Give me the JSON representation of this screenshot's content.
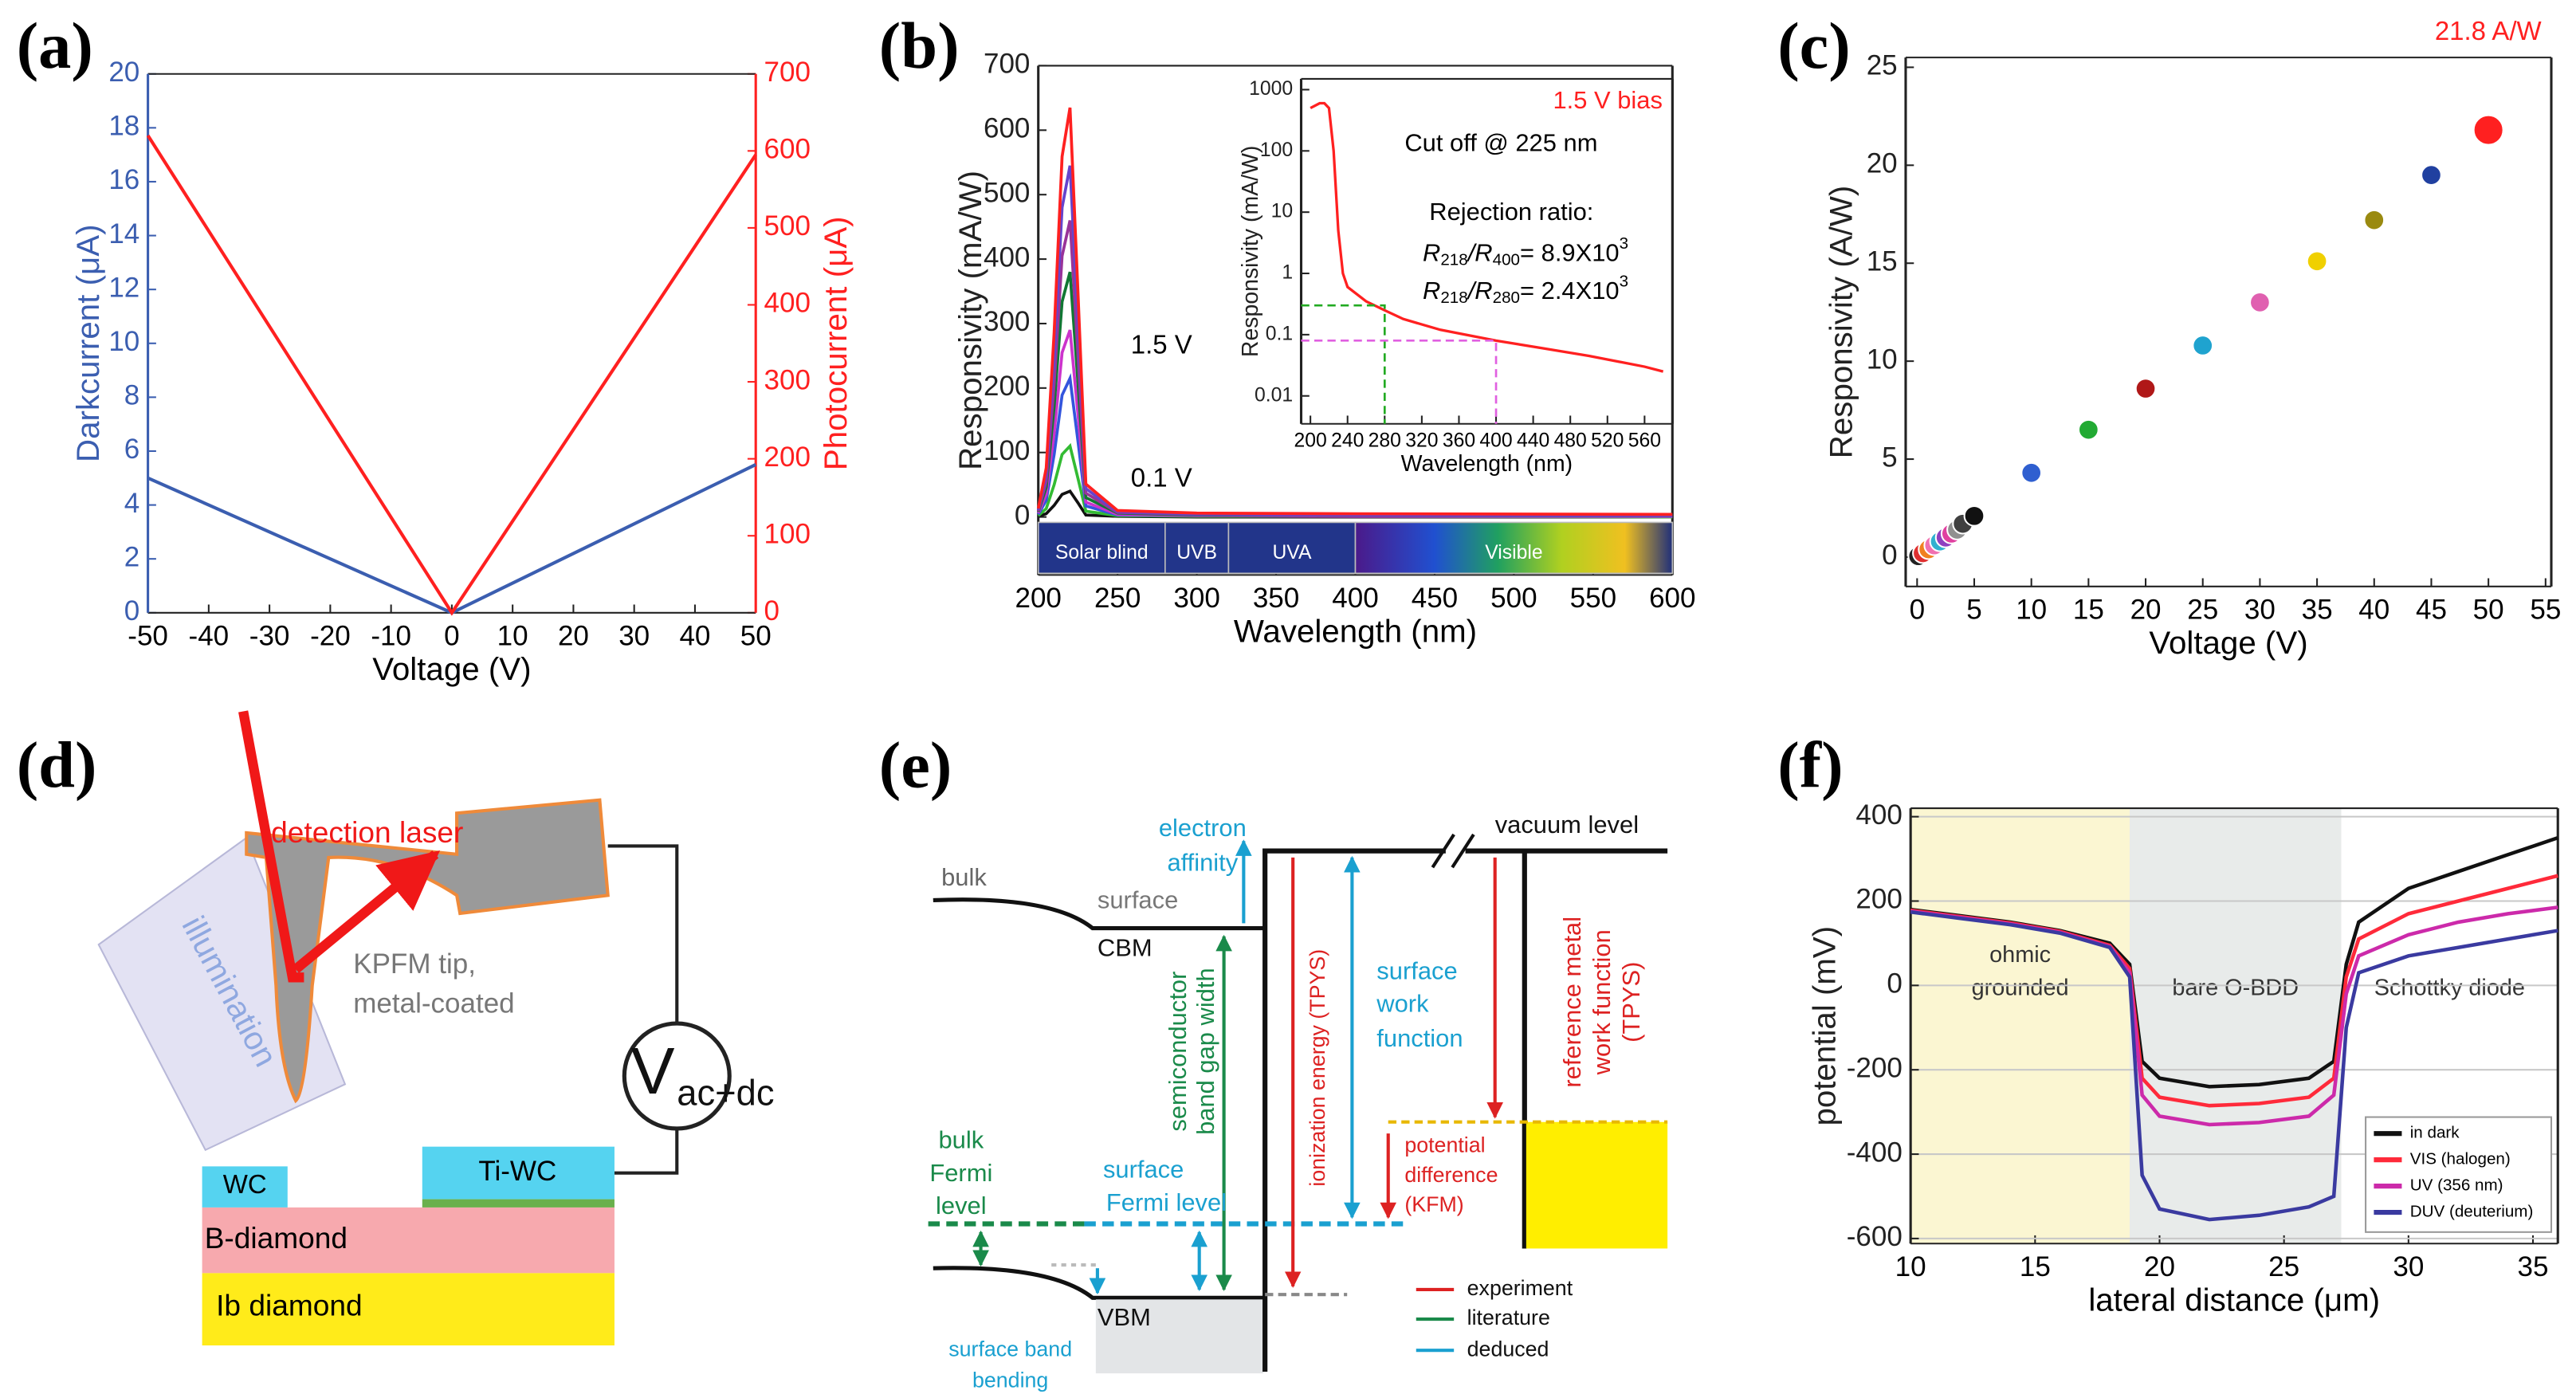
{
  "chart_data": [
    {
      "panel_label": "(a)",
      "type": "line",
      "xlabel": "Voltage (V)",
      "ylabel": "Darkcurrent (μA)",
      "y2label": "Photocurrent (μA)",
      "x": [
        -50,
        0,
        50
      ],
      "xlim": [
        -50,
        50
      ],
      "xticks": [
        -50,
        -40,
        -30,
        -20,
        -10,
        0,
        10,
        20,
        30,
        40,
        50
      ],
      "ylim": [
        0,
        20
      ],
      "yticks": [
        0,
        2,
        4,
        6,
        8,
        10,
        12,
        14,
        16,
        18,
        20
      ],
      "y2lim": [
        0,
        700
      ],
      "y2ticks": [
        0,
        100,
        200,
        300,
        400,
        500,
        600,
        700
      ],
      "series": [
        {
          "color": "#3b5eb0",
          "values": [
            5,
            0,
            5.5
          ]
        },
        {
          "color": "#ff2020",
          "axis": "y2",
          "values": [
            620,
            0,
            595
          ]
        }
      ]
    },
    {
      "panel_label": "(b)",
      "type": "line",
      "xlabel": "Wavelength (nm)",
      "ylabel": "Responsivity (mA/W)",
      "x": [
        200,
        205,
        210,
        215,
        220,
        225,
        230,
        250,
        300,
        400,
        600
      ],
      "xlim": [
        200,
        600
      ],
      "xticks": [
        200,
        250,
        300,
        350,
        400,
        450,
        500,
        550,
        600
      ],
      "ylim": [
        -90,
        700
      ],
      "yticks": [
        0,
        100,
        200,
        300,
        400,
        500,
        600,
        700
      ],
      "series": [
        {
          "color": "#111111",
          "values": [
            1,
            5,
            18,
            35,
            40,
            22,
            3,
            1,
            0,
            0,
            0
          ]
        },
        {
          "color": "#33bb33",
          "values": [
            2,
            13,
            50,
            97,
            110,
            60,
            9,
            2,
            1,
            1,
            0
          ]
        },
        {
          "color": "#3355dd",
          "values": [
            4,
            26,
            97,
            189,
            215,
            118,
            17,
            3,
            2,
            1,
            1
          ]
        },
        {
          "color": "#cc33cc",
          "values": [
            6,
            35,
            130,
            255,
            290,
            160,
            23,
            4,
            2,
            1,
            1
          ]
        },
        {
          "color": "#117733",
          "values": [
            8,
            46,
            171,
            334,
            380,
            209,
            30,
            6,
            3,
            2,
            2
          ]
        },
        {
          "color": "#993399",
          "values": [
            9,
            55,
            207,
            405,
            460,
            253,
            37,
            7,
            4,
            2,
            2
          ]
        },
        {
          "color": "#6644cc",
          "values": [
            11,
            65,
            245,
            480,
            545,
            300,
            44,
            8,
            4,
            3,
            2
          ]
        },
        {
          "color": "#ff2020",
          "values": [
            13,
            76,
            286,
            559,
            635,
            349,
            51,
            10,
            6,
            5,
            4
          ]
        }
      ],
      "annotations": [
        "1.5 V",
        "0.1 V"
      ],
      "bands": [
        {
          "label": "Solar blind",
          "from": 200,
          "to": 280
        },
        {
          "label": "UVB",
          "from": 280,
          "to": 320
        },
        {
          "label": "UVA",
          "from": 320,
          "to": 400
        },
        {
          "label": "Visible",
          "from": 400,
          "to": 600
        }
      ],
      "inset": {
        "type": "line",
        "ylog": true,
        "xlabel": "Wavelength (nm)",
        "ylabel": "Responsivity (mA/W)",
        "x": [
          200,
          210,
          215,
          220,
          225,
          230,
          235,
          240,
          260,
          280,
          300,
          340,
          400,
          450,
          500,
          560,
          580
        ],
        "xlim": [
          190,
          590
        ],
        "xticks": [
          200,
          240,
          280,
          320,
          360,
          400,
          440,
          480,
          520,
          560
        ],
        "ylim": [
          0.0035,
          1500
        ],
        "yticks": [
          0.01,
          0.1,
          1,
          10,
          100,
          1000
        ],
        "series": [
          {
            "color": "#ff2020",
            "values": [
              500,
              600,
              600,
              500,
              100,
              5,
              1,
              0.6,
              0.35,
              0.25,
              0.18,
              0.12,
              0.08,
              0.06,
              0.045,
              0.03,
              0.025
            ]
          }
        ],
        "reference_lines": [
          {
            "x": 280,
            "y": 0.3,
            "color": "#22aa22"
          },
          {
            "x": 400,
            "y": 0.08,
            "color": "#e060e0"
          }
        ],
        "bias": "1.5 V bias",
        "cutoff": "Cut off @ 225 nm",
        "rejection_title": "Rejection ratio:",
        "rejection": [
          [
            "R",
            "218",
            "/R",
            "400",
            "= 8.9X10",
            "3"
          ],
          [
            "R",
            "218",
            "/R",
            "280",
            "= 2.4X10",
            "3"
          ]
        ]
      }
    },
    {
      "panel_label": "(c)",
      "type": "scatter",
      "xlabel": "Voltage (V)",
      "ylabel": "Responsivity (A/W)",
      "x": [
        0.1,
        0.5,
        1,
        1.5,
        2,
        2.5,
        3,
        3.5,
        4,
        5,
        10,
        15,
        20,
        25,
        30,
        35,
        40,
        45,
        50
      ],
      "values": [
        0.05,
        0.2,
        0.4,
        0.6,
        0.8,
        1.0,
        1.2,
        1.4,
        1.7,
        2.1,
        4.3,
        6.5,
        8.6,
        10.8,
        13.0,
        15.1,
        17.2,
        19.5,
        21.8
      ],
      "colors": [
        "#222222",
        "#e03030",
        "#f08020",
        "#f070b0",
        "#30b0d0",
        "#9040c0",
        "#e040a0",
        "#909090",
        "#404040",
        "#111111",
        "#2f5fd0",
        "#22aa33",
        "#b01818",
        "#1fa3cf",
        "#e060b0",
        "#f0d000",
        "#9a8a10",
        "#2040a0",
        "#ff2020"
      ],
      "xlim": [
        -1,
        55.5
      ],
      "xticks": [
        0,
        5,
        10,
        15,
        20,
        25,
        30,
        35,
        40,
        45,
        50,
        55
      ],
      "ylim": [
        -1.5,
        25.5
      ],
      "yticks": [
        0,
        5,
        10,
        15,
        20,
        25
      ],
      "annotation": "21.8 A/W"
    },
    {
      "panel_label": "(f)",
      "type": "line",
      "xlabel": "lateral distance (μm)",
      "ylabel": "potential (mV)",
      "x": [
        10,
        12,
        14,
        16,
        18,
        18.8,
        19.3,
        20,
        22,
        24,
        26,
        27,
        27.5,
        28,
        30,
        32,
        34,
        36
      ],
      "xlim": [
        10,
        36
      ],
      "xticks": [
        10,
        15,
        20,
        25,
        30,
        35
      ],
      "ylim": [
        -612,
        420
      ],
      "yticks": [
        -600,
        -400,
        -200,
        0,
        200,
        400
      ],
      "grid": true,
      "legend": "lower right",
      "regions": [
        {
          "label": [
            "ohmic",
            "grounded"
          ],
          "from": 10,
          "to": 18.8,
          "color": "#fbf6d2"
        },
        {
          "label": [
            "bare O-BDD"
          ],
          "from": 18.8,
          "to": 27.3,
          "color": "#e8ebea"
        },
        {
          "label": [
            "Schottky diode"
          ],
          "from": 27.3,
          "to": 36,
          "color": "#ffffff"
        }
      ],
      "series": [
        {
          "name": "in dark",
          "color": "#111111",
          "values": [
            180,
            165,
            150,
            130,
            100,
            50,
            -180,
            -220,
            -240,
            -235,
            -220,
            -180,
            50,
            150,
            230,
            270,
            310,
            350
          ]
        },
        {
          "name": "VIS (halogen)",
          "color": "#ff2a3a",
          "values": [
            178,
            163,
            148,
            128,
            95,
            40,
            -220,
            -265,
            -285,
            -280,
            -265,
            -220,
            20,
            110,
            170,
            200,
            230,
            260
          ]
        },
        {
          "name": "UV (356 nm)",
          "color": "#cc2aaa",
          "values": [
            176,
            161,
            146,
            126,
            92,
            30,
            -260,
            -310,
            -330,
            -325,
            -310,
            -260,
            -20,
            70,
            120,
            150,
            170,
            185
          ]
        },
        {
          "name": "DUV (deuterium)",
          "color": "#3a3aa0",
          "values": [
            174,
            159,
            144,
            124,
            90,
            20,
            -450,
            -530,
            -555,
            -545,
            -525,
            -500,
            -100,
            30,
            70,
            90,
            110,
            130
          ]
        }
      ]
    }
  ],
  "diagram_d": {
    "panel_label": "(d)",
    "laser": "detection laser",
    "illumination": "illumination",
    "tip": [
      "KPFM tip,",
      "metal-coated"
    ],
    "voltage": "V",
    "voltage_sub": "ac+dc",
    "wc": "WC",
    "tiwc": "Ti-WC",
    "bdiamond": "B-diamond",
    "ibdiamond": "Ib diamond"
  },
  "diagram_e": {
    "panel_label": "(e)",
    "bulk": "bulk",
    "surface": "surface",
    "cbm": "CBM",
    "vbm": "VBM",
    "electron_affinity": [
      "electron",
      "affinity"
    ],
    "band_gap": [
      "semiconductor",
      "band gap width"
    ],
    "ionization": "ionization energy (TPYS)",
    "work_function": [
      "surface",
      "work",
      "function"
    ],
    "vacuum": "vacuum level",
    "reference": [
      "reference metal",
      "work function",
      "(TPYS)"
    ],
    "potential_difference": [
      "potential",
      "difference",
      "(KFM)"
    ],
    "bulk_fermi": [
      "bulk",
      "Fermi",
      "level"
    ],
    "surface_fermi": [
      "surface",
      "Fermi level"
    ],
    "band_bending": [
      "surface band",
      "bending"
    ],
    "legend": [
      "experiment",
      "literature",
      "deduced"
    ]
  }
}
